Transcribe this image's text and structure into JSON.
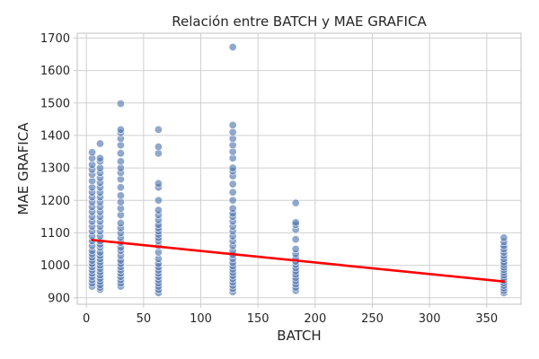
{
  "chart_data": {
    "type": "scatter",
    "title": "Relación entre BATCH y MAE GRAFICA",
    "xlabel": "BATCH",
    "ylabel": "MAE GRAFICA",
    "xlim": [
      -8,
      380
    ],
    "ylim": [
      880,
      1715
    ],
    "x_ticks": [
      0,
      50,
      100,
      150,
      200,
      250,
      300,
      350
    ],
    "y_ticks": [
      900,
      1000,
      1100,
      1200,
      1300,
      1400,
      1500,
      1600,
      1700
    ],
    "grid": true,
    "colors": {
      "points": "#4c72b0",
      "trend": "#ff0000"
    },
    "trend_line": {
      "x": [
        5,
        365
      ],
      "y": [
        1078,
        950
      ]
    },
    "series": [
      {
        "points": [
          [
            5,
            935
          ],
          [
            5,
            945
          ],
          [
            5,
            955
          ],
          [
            5,
            965
          ],
          [
            5,
            975
          ],
          [
            5,
            985
          ],
          [
            5,
            995
          ],
          [
            5,
            1005
          ],
          [
            5,
            1015
          ],
          [
            5,
            1025
          ],
          [
            5,
            1035
          ],
          [
            5,
            1045
          ],
          [
            5,
            1060
          ],
          [
            5,
            1075
          ],
          [
            5,
            1090
          ],
          [
            5,
            1105
          ],
          [
            5,
            1120
          ],
          [
            5,
            1135
          ],
          [
            5,
            1150
          ],
          [
            5,
            1165
          ],
          [
            5,
            1180
          ],
          [
            5,
            1195
          ],
          [
            5,
            1210
          ],
          [
            5,
            1225
          ],
          [
            5,
            1240
          ],
          [
            5,
            1260
          ],
          [
            5,
            1280
          ],
          [
            5,
            1295
          ],
          [
            5,
            1310
          ],
          [
            5,
            1330
          ],
          [
            5,
            1348
          ],
          [
            12,
            925
          ],
          [
            12,
            932
          ],
          [
            12,
            940
          ],
          [
            12,
            950
          ],
          [
            12,
            960
          ],
          [
            12,
            970
          ],
          [
            12,
            980
          ],
          [
            12,
            990
          ],
          [
            12,
            1000
          ],
          [
            12,
            1010
          ],
          [
            12,
            1020
          ],
          [
            12,
            1030
          ],
          [
            12,
            1040
          ],
          [
            12,
            1055
          ],
          [
            12,
            1065
          ],
          [
            12,
            1075
          ],
          [
            12,
            1090
          ],
          [
            12,
            1105
          ],
          [
            12,
            1120
          ],
          [
            12,
            1135
          ],
          [
            12,
            1150
          ],
          [
            12,
            1165
          ],
          [
            12,
            1180
          ],
          [
            12,
            1195
          ],
          [
            12,
            1210
          ],
          [
            12,
            1225
          ],
          [
            12,
            1240
          ],
          [
            12,
            1255
          ],
          [
            12,
            1270
          ],
          [
            12,
            1285
          ],
          [
            12,
            1300
          ],
          [
            12,
            1320
          ],
          [
            12,
            1330
          ],
          [
            12,
            1375
          ],
          [
            30,
            935
          ],
          [
            30,
            945
          ],
          [
            30,
            955
          ],
          [
            30,
            965
          ],
          [
            30,
            975
          ],
          [
            30,
            985
          ],
          [
            30,
            995
          ],
          [
            30,
            1005
          ],
          [
            30,
            1015
          ],
          [
            30,
            1030
          ],
          [
            30,
            1045
          ],
          [
            30,
            1055
          ],
          [
            30,
            1070
          ],
          [
            30,
            1085
          ],
          [
            30,
            1100
          ],
          [
            30,
            1115
          ],
          [
            30,
            1130
          ],
          [
            30,
            1155
          ],
          [
            30,
            1175
          ],
          [
            30,
            1195
          ],
          [
            30,
            1215
          ],
          [
            30,
            1240
          ],
          [
            30,
            1265
          ],
          [
            30,
            1285
          ],
          [
            30,
            1300
          ],
          [
            30,
            1320
          ],
          [
            30,
            1345
          ],
          [
            30,
            1370
          ],
          [
            30,
            1390
          ],
          [
            30,
            1408
          ],
          [
            30,
            1418
          ],
          [
            30,
            1498
          ],
          [
            63,
            915
          ],
          [
            63,
            925
          ],
          [
            63,
            935
          ],
          [
            63,
            945
          ],
          [
            63,
            955
          ],
          [
            63,
            965
          ],
          [
            63,
            975
          ],
          [
            63,
            985
          ],
          [
            63,
            995
          ],
          [
            63,
            1005
          ],
          [
            63,
            1020
          ],
          [
            63,
            1040
          ],
          [
            63,
            1060
          ],
          [
            63,
            1075
          ],
          [
            63,
            1085
          ],
          [
            63,
            1095
          ],
          [
            63,
            1105
          ],
          [
            63,
            1115
          ],
          [
            63,
            1125
          ],
          [
            63,
            1140
          ],
          [
            63,
            1155
          ],
          [
            63,
            1170
          ],
          [
            63,
            1200
          ],
          [
            63,
            1240
          ],
          [
            63,
            1252
          ],
          [
            63,
            1345
          ],
          [
            63,
            1365
          ],
          [
            63,
            1418
          ],
          [
            128,
            918
          ],
          [
            128,
            928
          ],
          [
            128,
            938
          ],
          [
            128,
            948
          ],
          [
            128,
            958
          ],
          [
            128,
            968
          ],
          [
            128,
            978
          ],
          [
            128,
            988
          ],
          [
            128,
            998
          ],
          [
            128,
            1008
          ],
          [
            128,
            1020
          ],
          [
            128,
            1032
          ],
          [
            128,
            1045
          ],
          [
            128,
            1060
          ],
          [
            128,
            1075
          ],
          [
            128,
            1090
          ],
          [
            128,
            1105
          ],
          [
            128,
            1120
          ],
          [
            128,
            1135
          ],
          [
            128,
            1150
          ],
          [
            128,
            1160
          ],
          [
            128,
            1175
          ],
          [
            128,
            1200
          ],
          [
            128,
            1225
          ],
          [
            128,
            1250
          ],
          [
            128,
            1275
          ],
          [
            128,
            1290
          ],
          [
            128,
            1300
          ],
          [
            128,
            1330
          ],
          [
            128,
            1350
          ],
          [
            128,
            1370
          ],
          [
            128,
            1390
          ],
          [
            128,
            1410
          ],
          [
            128,
            1432
          ],
          [
            128,
            1672
          ],
          [
            183,
            922
          ],
          [
            183,
            932
          ],
          [
            183,
            942
          ],
          [
            183,
            952
          ],
          [
            183,
            962
          ],
          [
            183,
            972
          ],
          [
            183,
            982
          ],
          [
            183,
            992
          ],
          [
            183,
            1002
          ],
          [
            183,
            1012
          ],
          [
            183,
            1022
          ],
          [
            183,
            1035
          ],
          [
            183,
            1050
          ],
          [
            183,
            1080
          ],
          [
            183,
            1110
          ],
          [
            183,
            1125
          ],
          [
            183,
            1132
          ],
          [
            183,
            1192
          ],
          [
            365,
            915
          ],
          [
            365,
            922
          ],
          [
            365,
            930
          ],
          [
            365,
            938
          ],
          [
            365,
            946
          ],
          [
            365,
            954
          ],
          [
            365,
            962
          ],
          [
            365,
            970
          ],
          [
            365,
            978
          ],
          [
            365,
            986
          ],
          [
            365,
            994
          ],
          [
            365,
            1002
          ],
          [
            365,
            1010
          ],
          [
            365,
            1020
          ],
          [
            365,
            1030
          ],
          [
            365,
            1040
          ],
          [
            365,
            1050
          ],
          [
            365,
            1060
          ],
          [
            365,
            1072
          ],
          [
            365,
            1085
          ]
        ]
      }
    ]
  }
}
